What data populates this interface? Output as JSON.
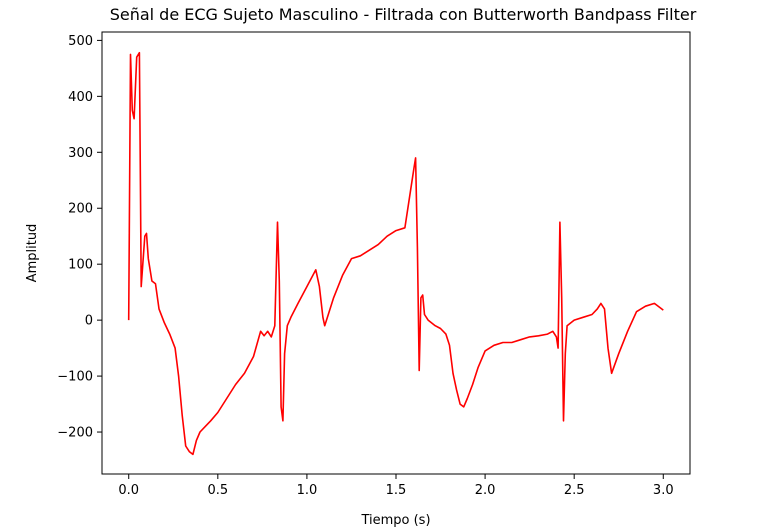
{
  "chart_data": {
    "type": "line",
    "title": "Señal de ECG Sujeto Masculino - Filtrada con Butterworth Bandpass Filter",
    "xlabel": "Tiempo (s)",
    "ylabel": "Amplitud",
    "xlim": [
      -0.15,
      3.15
    ],
    "ylim": [
      -275,
      515
    ],
    "xticks": [
      0.0,
      0.5,
      1.0,
      1.5,
      2.0,
      2.5,
      3.0
    ],
    "xtick_labels": [
      "0.0",
      "0.5",
      "1.0",
      "1.5",
      "2.0",
      "2.5",
      "3.0"
    ],
    "yticks": [
      -200,
      -100,
      0,
      100,
      200,
      300,
      400,
      500
    ],
    "ytick_labels": [
      "−200",
      "−100",
      "0",
      "100",
      "200",
      "300",
      "400",
      "500"
    ],
    "grid": false,
    "series": [
      {
        "color": "#ff0000",
        "x": [
          0.0,
          0.01,
          0.02,
          0.03,
          0.045,
          0.06,
          0.07,
          0.09,
          0.1,
          0.11,
          0.12,
          0.13,
          0.15,
          0.17,
          0.2,
          0.23,
          0.26,
          0.28,
          0.3,
          0.32,
          0.34,
          0.36,
          0.38,
          0.4,
          0.43,
          0.46,
          0.5,
          0.55,
          0.6,
          0.65,
          0.7,
          0.74,
          0.76,
          0.78,
          0.8,
          0.82,
          0.835,
          0.845,
          0.855,
          0.865,
          0.875,
          0.89,
          0.91,
          0.95,
          1.0,
          1.05,
          1.07,
          1.09,
          1.1,
          1.12,
          1.15,
          1.2,
          1.25,
          1.3,
          1.35,
          1.4,
          1.45,
          1.5,
          1.55,
          1.6,
          1.61,
          1.62,
          1.63,
          1.64,
          1.65,
          1.66,
          1.68,
          1.72,
          1.75,
          1.78,
          1.8,
          1.82,
          1.84,
          1.86,
          1.88,
          1.9,
          1.93,
          1.96,
          2.0,
          2.05,
          2.1,
          2.15,
          2.2,
          2.25,
          2.3,
          2.35,
          2.38,
          2.4,
          2.41,
          2.42,
          2.43,
          2.44,
          2.45,
          2.46,
          2.5,
          2.55,
          2.6,
          2.63,
          2.65,
          2.67,
          2.69,
          2.71,
          2.75,
          2.8,
          2.85,
          2.9,
          2.95,
          3.0
        ],
        "values": [
          0,
          475,
          375,
          360,
          470,
          478,
          60,
          150,
          155,
          110,
          90,
          70,
          65,
          20,
          -5,
          -25,
          -50,
          -100,
          -170,
          -225,
          -235,
          -240,
          -215,
          -200,
          -190,
          -180,
          -165,
          -140,
          -115,
          -95,
          -65,
          -20,
          -28,
          -20,
          -30,
          -10,
          175,
          70,
          -155,
          -180,
          -60,
          -10,
          5,
          30,
          60,
          90,
          60,
          5,
          -10,
          10,
          40,
          80,
          110,
          115,
          125,
          135,
          150,
          160,
          165,
          270,
          290,
          130,
          -90,
          40,
          45,
          10,
          0,
          -10,
          -15,
          -25,
          -45,
          -95,
          -125,
          -150,
          -155,
          -140,
          -115,
          -85,
          -55,
          -45,
          -40,
          -40,
          -35,
          -30,
          -28,
          -25,
          -20,
          -30,
          -50,
          175,
          40,
          -180,
          -60,
          -10,
          0,
          5,
          10,
          20,
          30,
          20,
          -50,
          -95,
          -60,
          -20,
          15,
          25,
          30,
          18
        ]
      }
    ]
  }
}
